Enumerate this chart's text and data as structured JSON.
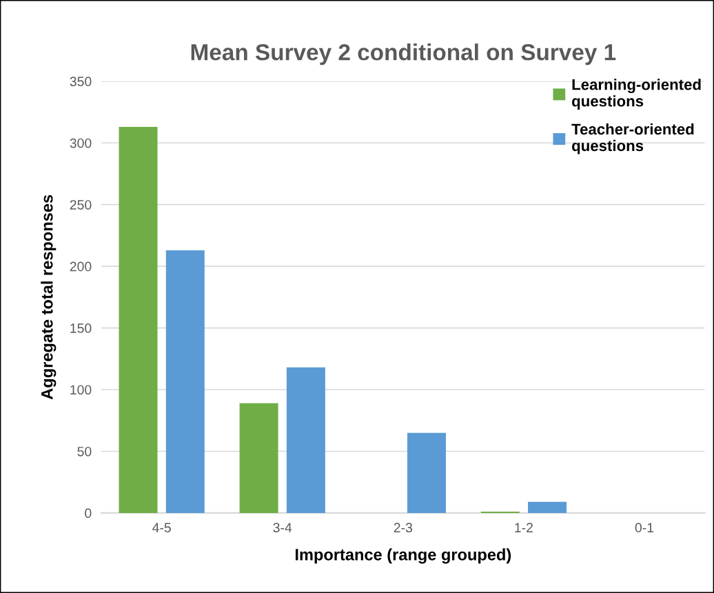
{
  "chart_data": {
    "type": "bar",
    "title": "Mean Survey 2 conditional on Survey 1",
    "xlabel": "Importance (range grouped)",
    "ylabel": "Aggregate total responses",
    "categories": [
      "4-5",
      "3-4",
      "2-3",
      "1-2",
      "0-1"
    ],
    "series": [
      {
        "name": "Learning-oriented questions",
        "color": "#70ad47",
        "values": [
          313,
          89,
          0,
          1,
          0
        ]
      },
      {
        "name": "Teacher-oriented questions",
        "color": "#5b9bd5",
        "values": [
          213,
          118,
          65,
          9,
          0
        ]
      }
    ],
    "ylim": [
      0,
      350
    ],
    "yticks": [
      0,
      50,
      100,
      150,
      200,
      250,
      300,
      350
    ],
    "grid": "y",
    "legend": "top right"
  }
}
